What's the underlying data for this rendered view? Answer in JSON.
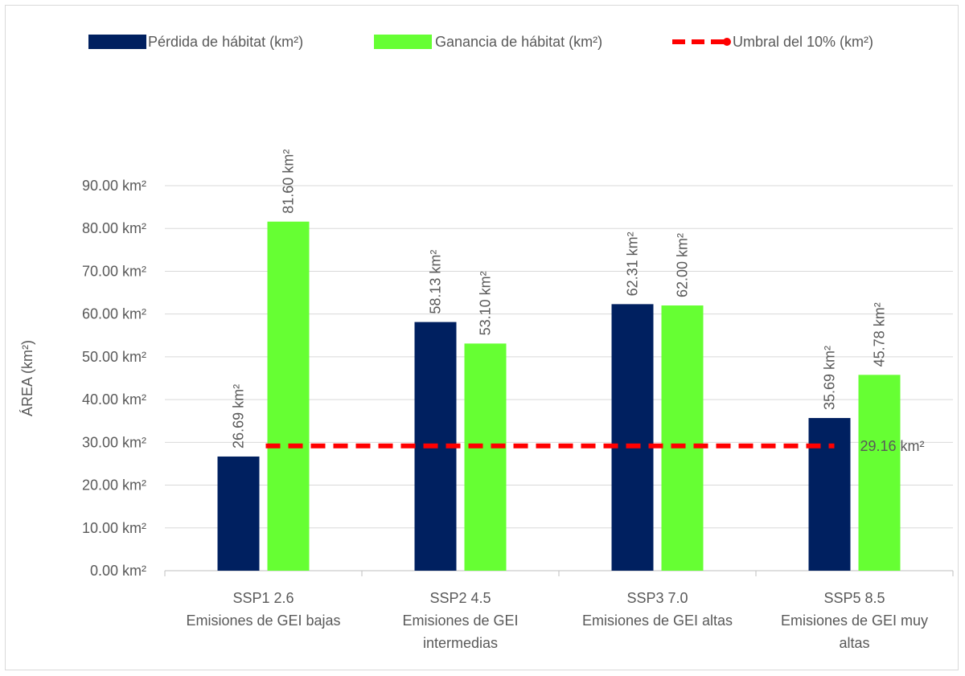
{
  "chart_data": {
    "type": "bar",
    "categories": [
      [
        "SSP1 2.6",
        "Emisiones de GEI bajas"
      ],
      [
        "SSP2 4.5",
        "Emisiones de GEI",
        "intermedias"
      ],
      [
        "SSP3 7.0",
        "Emisiones de GEI altas"
      ],
      [
        "SSP5 8.5",
        "Emisiones de GEI muy",
        "altas"
      ]
    ],
    "series": [
      {
        "name": "Pérdida de hábitat (km²)",
        "color": "#002060",
        "values": [
          26.69,
          58.13,
          62.31,
          35.69
        ],
        "labels": [
          "26.69 km²",
          "58.13 km²",
          "62.31 km²",
          "35.69 km²"
        ]
      },
      {
        "name": "Ganancia de hábitat (km²)",
        "color": "#66FF33",
        "values": [
          81.6,
          53.1,
          62.0,
          45.78
        ],
        "labels": [
          "81.60 km²",
          "53.10 km²",
          "62.00 km²",
          "45.78 km²"
        ]
      }
    ],
    "threshold": {
      "name": "Umbral del 10% (km²)",
      "color": "#FF0000",
      "value": 29.16,
      "label": "29.16 km²"
    },
    "ylabel": "ÁREA (km²)",
    "ylim": [
      0,
      90
    ],
    "yticks": [
      0,
      10,
      20,
      30,
      40,
      50,
      60,
      70,
      80,
      90
    ],
    "ytick_labels": [
      "0.00 km²",
      "10.00 km²",
      "20.00 km²",
      "30.00 km²",
      "40.00 km²",
      "50.00 km²",
      "60.00 km²",
      "70.00 km²",
      "80.00 km²",
      "90.00 km²"
    ],
    "grid": true,
    "legend_position": "top"
  }
}
